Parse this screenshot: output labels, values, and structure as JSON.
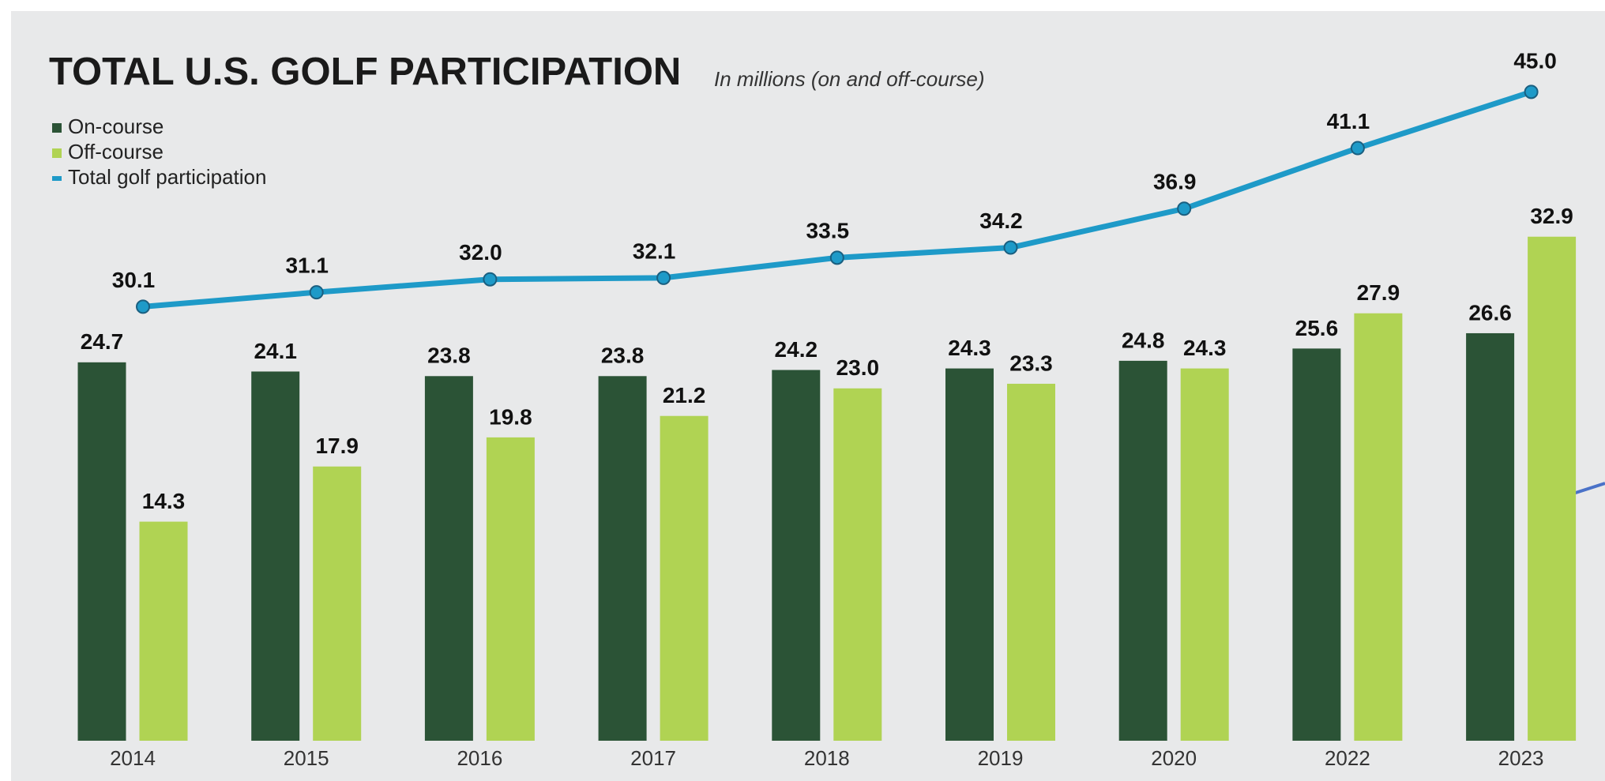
{
  "chart_data": {
    "type": "bar",
    "title": "TOTAL U.S. GOLF PARTICIPATION",
    "subtitle": "In millions (on and off-course)",
    "categories": [
      "2014",
      "2015",
      "2016",
      "2017",
      "2018",
      "2019",
      "2020",
      "2022",
      "2023"
    ],
    "series": [
      {
        "name": "On-course",
        "type": "bar",
        "color": "#2b5336",
        "values": [
          24.7,
          24.1,
          23.8,
          23.8,
          24.2,
          24.3,
          24.8,
          25.6,
          26.6
        ],
        "value_labels": [
          "24.7",
          "24.1",
          "23.8",
          "23.8",
          "24.2",
          "24.3",
          "24.8",
          "25.6",
          "26.6"
        ]
      },
      {
        "name": "Off-course",
        "type": "bar",
        "color": "#b0d353",
        "values": [
          14.3,
          17.9,
          19.8,
          21.2,
          23.0,
          23.3,
          24.3,
          27.9,
          32.9
        ],
        "value_labels": [
          "14.3",
          "17.9",
          "19.8",
          "21.2",
          "23.0",
          "23.3",
          "24.3",
          "27.9",
          "32.9"
        ]
      },
      {
        "name": "Total golf participation",
        "type": "line",
        "axis": "y2",
        "color": "#1e9ac8",
        "values": [
          30.1,
          31.1,
          32.0,
          32.1,
          33.5,
          34.2,
          36.9,
          41.1,
          45.0
        ],
        "value_labels": [
          "30.1",
          "31.1",
          "32.0",
          "32.1",
          "33.5",
          "34.2",
          "36.9",
          "41.1",
          "45.0"
        ]
      }
    ],
    "ylim": [
      0,
      40
    ],
    "y2lim": [
      0,
      42.5
    ],
    "grid": false,
    "legend": "upper left"
  }
}
